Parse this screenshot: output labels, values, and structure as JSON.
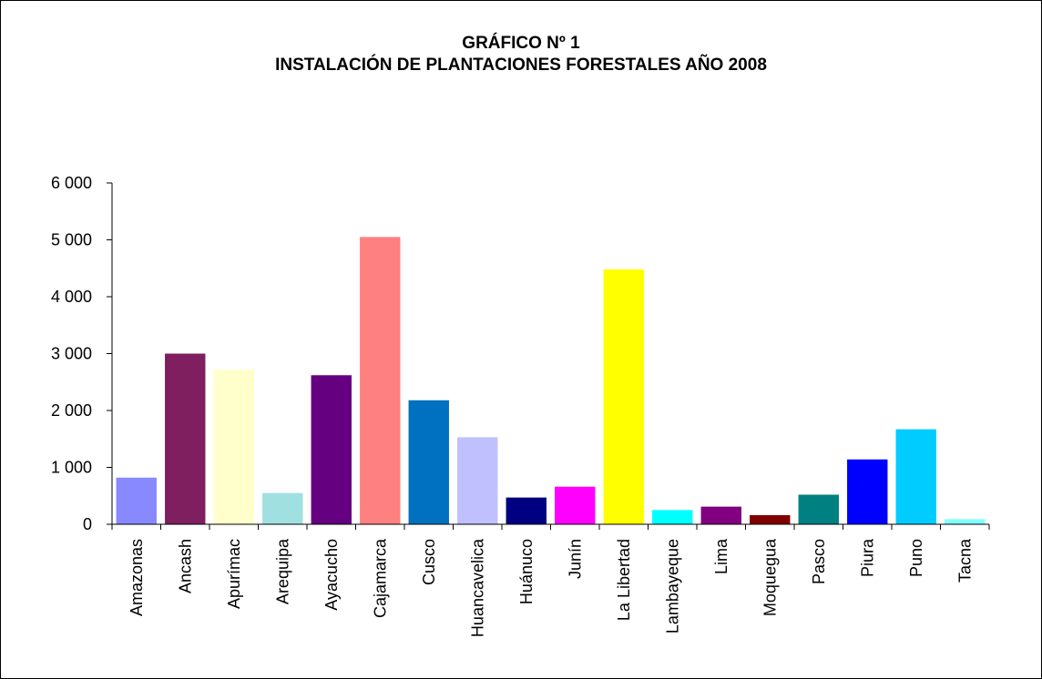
{
  "chart_data": {
    "type": "bar",
    "title_line1": "GRÁFICO Nº 1",
    "title_line2": "INSTALACIÓN DE PLANTACIONES FORESTALES AÑO 2008",
    "xlabel": "",
    "ylabel": "",
    "ylim": [
      0,
      6000
    ],
    "y_ticks": [
      0,
      1000,
      2000,
      3000,
      4000,
      5000,
      6000
    ],
    "y_tick_labels": [
      "0",
      "1 000",
      "2 000",
      "3 000",
      "4 000",
      "5 000",
      "6 000"
    ],
    "grid": false,
    "legend": "none",
    "categories": [
      "Amazonas",
      "Ancash",
      "Apurímac",
      "Arequipa",
      "Ayacucho",
      "Cajamarca",
      "Cusco",
      "Huancavelica",
      "Huánuco",
      "Junín",
      "La Libertad",
      "Lambayeque",
      "Lima",
      "Moquegua",
      "Pasco",
      "Piura",
      "Puno",
      "Tacna"
    ],
    "values": [
      820,
      3000,
      2720,
      550,
      2620,
      5050,
      2180,
      1530,
      470,
      660,
      4480,
      250,
      310,
      160,
      520,
      1140,
      1670,
      90
    ],
    "colors": [
      "#8888ff",
      "#7f1f5f",
      "#ffffcc",
      "#a0e0e0",
      "#650080",
      "#ff8080",
      "#0070c0",
      "#c0c0ff",
      "#000080",
      "#ff00ff",
      "#ffff00",
      "#00ffff",
      "#800080",
      "#800000",
      "#008080",
      "#0000ff",
      "#00ccff",
      "#80ffff"
    ]
  }
}
